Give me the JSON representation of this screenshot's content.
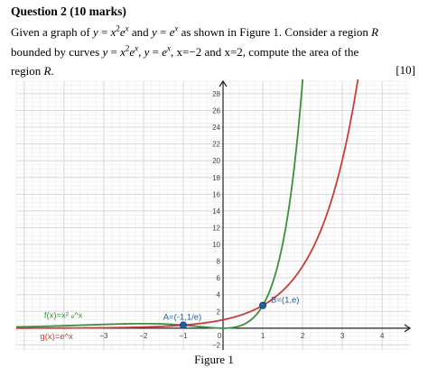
{
  "question": {
    "heading": "Question 2 (10 marks)",
    "line1_a": "Given a graph of ",
    "line1_b": " and ",
    "line1_c": " as shown in Figure 1. Consider a region ",
    "region_symbol": "R",
    "line2_a": "bounded by curves ",
    "line2_sep": ", ",
    "line2_b": ", x=−2 and x=2, compute the area of the",
    "line3_a": "region ",
    "line3_b": ".",
    "marks": "[10]",
    "eq_y": "y",
    "eq_eq": " = ",
    "eq_x2": "x",
    "eq_two": "2",
    "eq_e": "e",
    "eq_x": "x"
  },
  "figure": {
    "caption": "Figure 1"
  },
  "chart_data": {
    "type": "line",
    "xlim": [
      -5.2,
      4.7
    ],
    "ylim": [
      -2.6,
      29.5
    ],
    "x_ticks": [
      -3,
      -2,
      -1,
      0,
      1,
      2,
      3,
      4
    ],
    "x_tick_labels": [
      "−3",
      "−2",
      "−1",
      "0",
      "1",
      "2",
      "3",
      "4"
    ],
    "y_ticks": [
      -2,
      2,
      4,
      6,
      8,
      10,
      12,
      14,
      16,
      18,
      20,
      22,
      24,
      26,
      28
    ],
    "y_tick_labels": [
      "−2",
      "2",
      "4",
      "6",
      "8",
      "10",
      "12",
      "14",
      "16",
      "18",
      "20",
      "22",
      "24",
      "26",
      "28"
    ],
    "grid": true,
    "series": [
      {
        "name": "f(x)=x² ℯ^x",
        "function": "x^2*e^x",
        "color": "#3d8f3d"
      },
      {
        "name": "g(x)=e^x",
        "function": "e^x",
        "color": "#cc3b3b"
      }
    ],
    "points": [
      {
        "label": "A=(-1,1/e)",
        "x": -1,
        "y": 0.368,
        "color": "#1f5fa8"
      },
      {
        "label": "B=(1,e)",
        "x": 1,
        "y": 2.718,
        "color": "#1f5fa8"
      }
    ],
    "annotations": [
      {
        "text": "f(x)=x² ₑ^x",
        "color": "#3d8f3d"
      },
      {
        "text": "g(x)=e^x",
        "color": "#cc3b3b"
      }
    ]
  }
}
